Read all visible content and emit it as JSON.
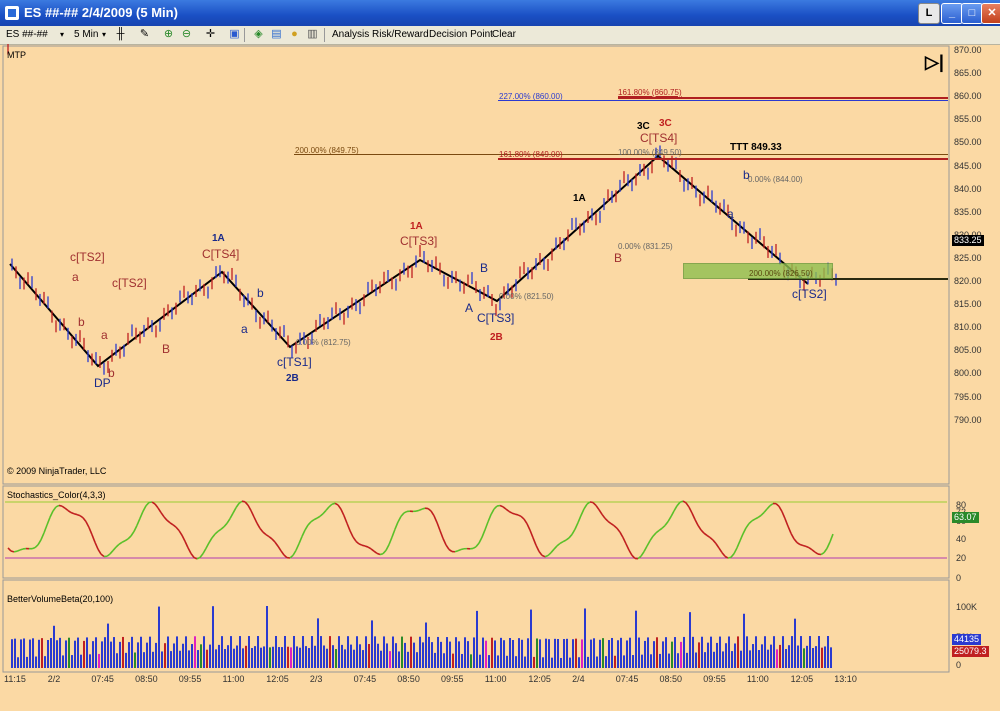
{
  "window": {
    "title": "ES ##-##  2/4/2009 (5 Min)"
  },
  "window_buttons": {
    "l": "L",
    "min": "_",
    "max": "□",
    "close": "✕"
  },
  "toolbar": {
    "instrument": "ES ##-##",
    "interval": "5 Min",
    "analysis": "Analysis",
    "risk_reward": "Risk/Reward",
    "decision_point": "Decision Point",
    "clear": "Clear"
  },
  "panels": {
    "main": {
      "label": "MTP",
      "copyright": "© 2009 NinjaTrader, LLC",
      "last_price": "833.25"
    },
    "stochastics": {
      "label": "Stochastics_Color(4,3,3)",
      "current": "63.07",
      "ticks": [
        "80",
        "72",
        "60",
        "40",
        "20",
        "0"
      ],
      "levels": [
        80,
        20
      ]
    },
    "volume": {
      "label": "BetterVolumeBeta(20,100)",
      "ticks": [
        "100K",
        "50K",
        "0"
      ],
      "badge_upper": "44135",
      "badge_lower": "25079.3"
    }
  },
  "price_axis": [
    "870.00",
    "865.00",
    "860.00",
    "855.00",
    "850.00",
    "845.00",
    "840.00",
    "835.00",
    "830.00",
    "825.00",
    "820.00",
    "815.00",
    "810.00",
    "805.00",
    "800.00",
    "795.00",
    "790.00"
  ],
  "time_axis": [
    "11:15",
    "2/2",
    "07:45",
    "08:50",
    "09:55",
    "11:00",
    "12:05",
    "2/3",
    "07:45",
    "08:50",
    "09:55",
    "11:00",
    "12:05",
    "2/4",
    "07:45",
    "08:50",
    "09:55",
    "11:00",
    "12:05",
    "13:10"
  ],
  "annotations": [
    {
      "text": "c[TS2]",
      "color": "#a03030"
    },
    {
      "text": "a",
      "color": "#a03030"
    },
    {
      "text": "b",
      "color": "#a03030"
    },
    {
      "text": "DP",
      "color": "#1a2a8a"
    },
    {
      "text": "a",
      "color": "#a03030"
    },
    {
      "text": "b",
      "color": "#a03030"
    },
    {
      "text": "c[TS2]",
      "color": "#a03030"
    },
    {
      "text": "B",
      "color": "#a03030"
    },
    {
      "text": "1A",
      "color": "#1a2a8a"
    },
    {
      "text": "C[TS4]",
      "color": "#a03030"
    },
    {
      "text": "b",
      "color": "#1a2a8a"
    },
    {
      "text": "a",
      "color": "#1a2a8a"
    },
    {
      "text": "c[TS1]",
      "color": "#1a2a8a"
    },
    {
      "text": "2B",
      "color": "#1a2a8a"
    },
    {
      "text": "1A",
      "color": "#c02020"
    },
    {
      "text": "C[TS3]",
      "color": "#a03030"
    },
    {
      "text": "B",
      "color": "#1a2a8a"
    },
    {
      "text": "A",
      "color": "#1a2a8a"
    },
    {
      "text": "C[TS3]",
      "color": "#1a2a8a"
    },
    {
      "text": "2B",
      "color": "#c02020"
    },
    {
      "text": "1A",
      "color": "#000000"
    },
    {
      "text": "B",
      "color": "#a03030"
    },
    {
      "text": "3C",
      "color": "#000000"
    },
    {
      "text": "3C",
      "color": "#c02020"
    },
    {
      "text": "C[TS4]",
      "color": "#a03030"
    },
    {
      "text": "TTT 849.33",
      "color": "#000000"
    },
    {
      "text": "b",
      "color": "#1a2a8a"
    },
    {
      "text": "a",
      "color": "#1a2a8a"
    },
    {
      "text": "c[TS2]",
      "color": "#1a2a8a"
    }
  ],
  "fib_labels": [
    {
      "text": "227.00% (860.00)",
      "color": "#2a3ad0"
    },
    {
      "text": "161.80% (860.75)",
      "color": "#b02020"
    },
    {
      "text": "200.00% (849.75)",
      "color": "#7a4a10"
    },
    {
      "text": "161.80% (849.00)",
      "color": "#b02020"
    },
    {
      "text": "100.00% (849.50)",
      "color": "#666666"
    },
    {
      "text": "0.00% (844.00)",
      "color": "#666666"
    },
    {
      "text": "0.00% (831.25)",
      "color": "#666666"
    },
    {
      "text": "200.00% (826.50)",
      "color": "#5a4a10"
    },
    {
      "text": "0.00% (821.50)",
      "color": "#666666"
    },
    {
      "text": "0.00% (812.75)",
      "color": "#666666"
    }
  ],
  "colors": {
    "background": "#fbd9a4",
    "up_bar": "#c02020",
    "down_bar": "#2a3ad0",
    "zigzag": "#000000",
    "blue_line": "#2a3ad0",
    "red_line": "#c02020",
    "zone": "#8fbf50"
  }
}
